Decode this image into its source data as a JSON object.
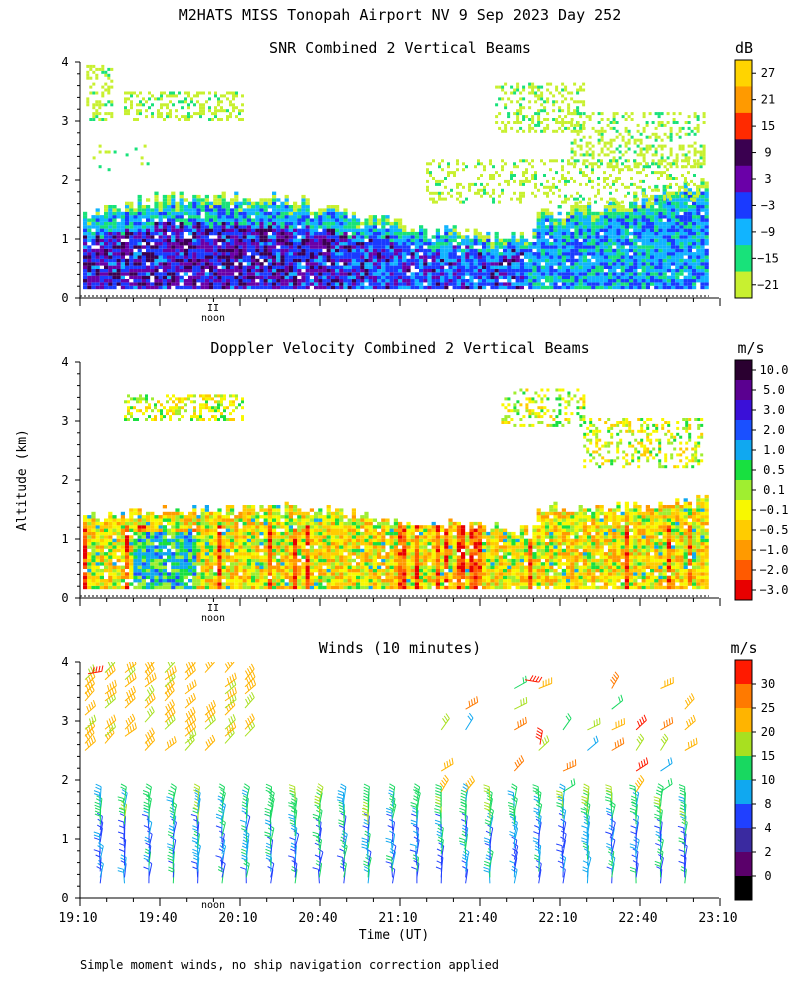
{
  "figure": {
    "title": "M2HATS MISS Tonopah Airport NV   9 Sep 2023 Day 252",
    "ylabel": "Altitude (km)",
    "xlabel": "Time (UT)",
    "noon_label": "noon",
    "noon_marker": "II",
    "footnote": "Simple moment winds, no ship navigation correction applied"
  },
  "chart_data": [
    {
      "type": "heatmap",
      "title": "SNR Combined 2 Vertical Beams",
      "units": "dB",
      "ylim": [
        0,
        4
      ],
      "yticks": [
        "0",
        "1",
        "2",
        "3",
        "4"
      ],
      "x_range": [
        "19:10",
        "23:10"
      ],
      "colorbar": {
        "labels": [
          "27",
          "21",
          "15",
          "9",
          "3",
          "−3",
          "−9",
          "−15",
          "−21"
        ],
        "colors": [
          "#ffd400",
          "#ff9a00",
          "#ff2a00",
          "#3a0050",
          "#6a00a8",
          "#1a3aff",
          "#11b4ff",
          "#18e27a",
          "#c8f030"
        ]
      },
      "features": [
        {
          "region": "boundary layer",
          "altitude_km": [
            0.15,
            1.7
          ],
          "snr_db": [
            -9,
            9
          ]
        },
        {
          "region": "upper cloud layer early",
          "altitude_km": [
            3.0,
            3.5
          ],
          "snr_db": [
            -21,
            -15
          ]
        },
        {
          "region": "upper cloud layer late",
          "altitude_km": [
            2.2,
            3.6
          ],
          "snr_db": [
            -21,
            -15
          ]
        }
      ]
    },
    {
      "type": "heatmap",
      "title": "Doppler Velocity Combined 2 Vertical Beams",
      "units": "m/s",
      "ylim": [
        0,
        4
      ],
      "yticks": [
        "0",
        "1",
        "2",
        "3",
        "4"
      ],
      "x_range": [
        "19:10",
        "23:10"
      ],
      "colorbar": {
        "labels": [
          "10.0",
          "5.0",
          "3.0",
          "2.0",
          "1.0",
          "0.5",
          "0.1",
          "−0.1",
          "−0.5",
          "−1.0",
          "−2.0",
          "−3.0"
        ],
        "colors": [
          "#2a0030",
          "#5a0090",
          "#3a10d8",
          "#1a50ff",
          "#10a8f0",
          "#18e040",
          "#a0ee30",
          "#f8f800",
          "#ffcc00",
          "#ff9a00",
          "#ff5a00",
          "#e80000"
        ]
      },
      "features": [
        {
          "region": "boundary layer",
          "altitude_km": [
            0.15,
            1.5
          ],
          "velocity_ms": [
            -3.0,
            1.0
          ]
        },
        {
          "region": "upper cloud layer early",
          "altitude_km": [
            3.0,
            3.4
          ],
          "velocity_ms": [
            -0.5,
            0.5
          ]
        },
        {
          "region": "upper cloud layer late",
          "altitude_km": [
            2.2,
            3.6
          ],
          "velocity_ms": [
            -0.5,
            1.0
          ]
        }
      ]
    },
    {
      "type": "scatter",
      "title": "Winds (10 minutes)",
      "units": "m/s",
      "ylim": [
        0,
        4
      ],
      "yticks": [
        "0",
        "1",
        "2",
        "3",
        "4"
      ],
      "x_ticks": [
        "19:10",
        "19:40",
        "20:10",
        "20:40",
        "21:10",
        "21:40",
        "22:10",
        "22:40",
        "23:10"
      ],
      "colorbar": {
        "labels": [
          "30",
          "25",
          "20",
          "15",
          "10",
          "8",
          "4",
          "2",
          "0"
        ],
        "colors": [
          "#ff1a00",
          "#ff7a00",
          "#ffb400",
          "#a8e020",
          "#18d860",
          "#10a8f0",
          "#2040ff",
          "#3a2aa0",
          "#5a006a",
          "#000000"
        ]
      },
      "features": [
        {
          "region": "lower profiles",
          "altitude_km": [
            0.2,
            1.7
          ],
          "speed_ms": [
            4,
            15
          ]
        },
        {
          "region": "upper layer early",
          "altitude_km": [
            2.4,
            3.9
          ],
          "speed_ms": [
            15,
            30
          ]
        },
        {
          "region": "upper layer late",
          "altitude_km": [
            1.8,
            4.0
          ],
          "speed_ms": [
            8,
            30
          ]
        }
      ]
    }
  ]
}
